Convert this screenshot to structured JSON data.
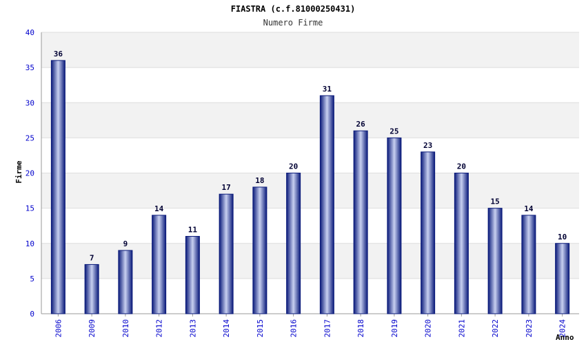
{
  "header": {
    "title": "FIASTRA (c.f.81000250431)",
    "subtitle": "Numero Firme"
  },
  "colors": {
    "bar_dark": "#0a1a7a",
    "bar_light": "#c8d0f0",
    "band": "#f2f2f2",
    "grid": "#dddddd",
    "tick_label": "#0000cc",
    "value_label": "#000033"
  },
  "chart_data": {
    "type": "bar",
    "title": "FIASTRA (c.f.81000250431)",
    "subtitle": "Numero Firme",
    "xlabel": "Anno",
    "ylabel": "Firme",
    "categories": [
      "2006",
      "2009",
      "2010",
      "2012",
      "2013",
      "2014",
      "2015",
      "2016",
      "2017",
      "2018",
      "2019",
      "2020",
      "2021",
      "2022",
      "2023",
      "2024"
    ],
    "values": [
      36,
      7,
      9,
      14,
      11,
      17,
      18,
      20,
      31,
      26,
      25,
      23,
      20,
      15,
      14,
      10
    ],
    "ylim": [
      0,
      40
    ],
    "yticks": [
      0,
      5,
      10,
      15,
      20,
      25,
      30,
      35,
      40
    ],
    "grid": true,
    "data_labels": true,
    "legend": "none"
  }
}
